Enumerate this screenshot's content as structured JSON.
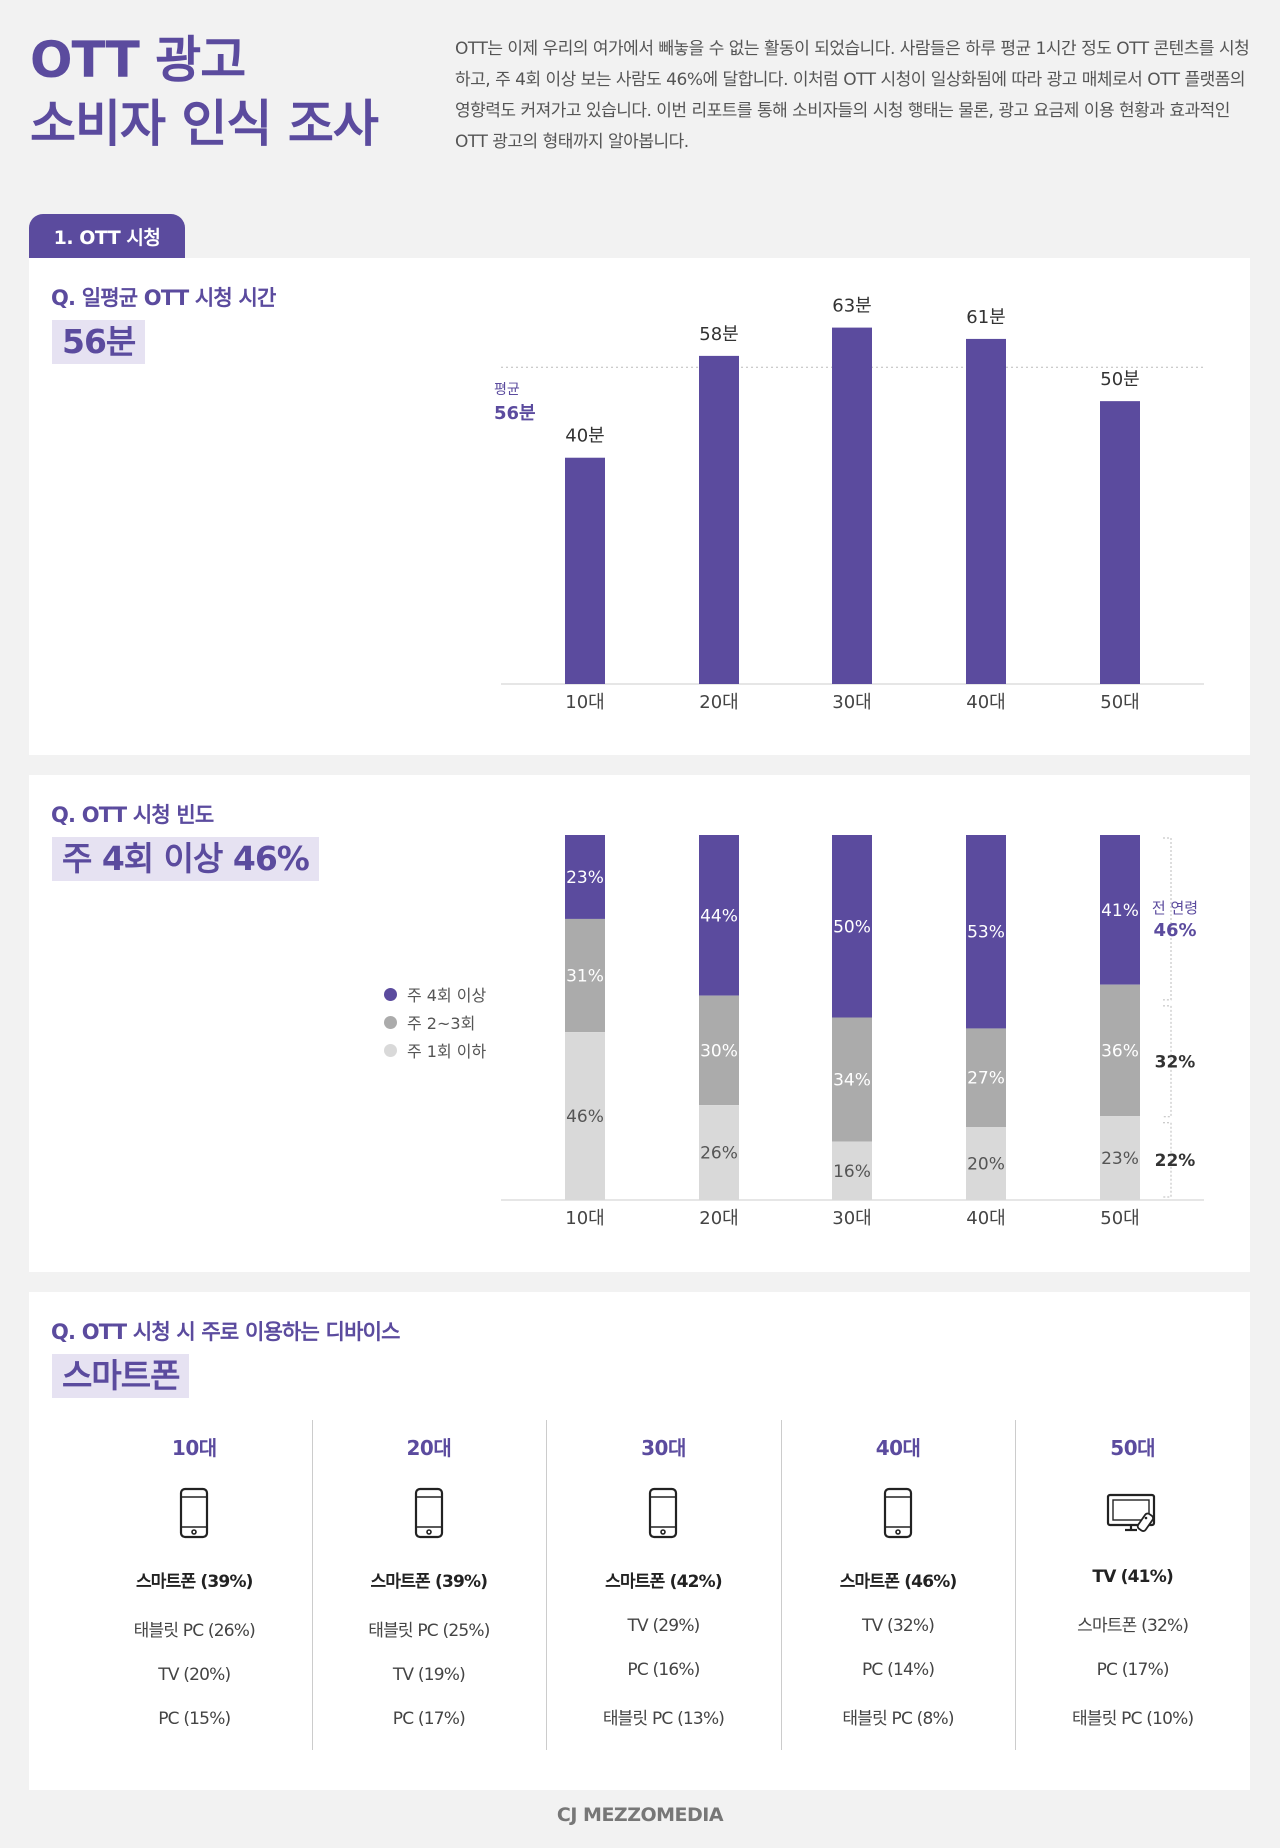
{
  "header": {
    "title_line1": "OTT 광고",
    "title_line2": "소비자 인식 조사",
    "intro": "OTT는 이제 우리의 여가에서 빼놓을 수 없는 활동이 되었습니다. 사람들은 하루 평균 1시간 정도 OTT 콘텐츠를 시청하고, 주 4회 이상 보는 사람도 46%에 달합니다. 이처럼 OTT 시청이 일상화됨에 따라 광고 매체로서 OTT 플랫폼의 영향력도 커져가고 있습니다. 이번 리포트를 통해 소비자들의 시청 행태는 물론, 광고 요금제 이용 현황과 효과적인 OTT 광고의 형태까지 알아봅니다."
  },
  "section_tab": "1. OTT 시청",
  "watch_time": {
    "question": "Q. 일평균 OTT 시청 시간",
    "highlight": "56분"
  },
  "frequency": {
    "question": "Q. OTT 시청 빈도",
    "highlight": "주 4회 이상 46%",
    "legend": [
      "주 4회 이상",
      "주 2~3회",
      "주 1회 이하"
    ]
  },
  "devices": {
    "question": "Q. OTT 시청 시 주로 이용하는 디바이스",
    "highlight": "스마트폰",
    "columns": [
      {
        "age": "10대",
        "icon": "smartphone-icon",
        "top": "스마트폰 (39%)",
        "rest": [
          "태블릿 PC (26%)",
          "TV (20%)",
          "PC (15%)"
        ]
      },
      {
        "age": "20대",
        "icon": "smartphone-icon",
        "top": "스마트폰 (39%)",
        "rest": [
          "태블릿 PC (25%)",
          "TV (19%)",
          "PC (17%)"
        ]
      },
      {
        "age": "30대",
        "icon": "smartphone-icon",
        "top": "스마트폰 (42%)",
        "rest": [
          "TV (29%)",
          "PC (16%)",
          "태블릿 PC (13%)"
        ]
      },
      {
        "age": "40대",
        "icon": "smartphone-icon",
        "top": "스마트폰 (46%)",
        "rest": [
          "TV (32%)",
          "PC (14%)",
          "태블릿 PC (8%)"
        ]
      },
      {
        "age": "50대",
        "icon": "tv-icon",
        "top": "TV (41%)",
        "rest": [
          "스마트폰 (32%)",
          "PC (17%)",
          "태블릿 PC (10%)"
        ]
      }
    ]
  },
  "footer": "CJ MEZZOMEDIA",
  "colors": {
    "primary": "#5b4b9e",
    "mid_gray": "#ababab",
    "light_gray": "#d9d9d9",
    "highlight_bg": "#e6e2f2"
  },
  "chart_data": [
    {
      "type": "bar",
      "categories": [
        "10대",
        "20대",
        "30대",
        "40대",
        "50대"
      ],
      "values": [
        40,
        58,
        63,
        61,
        50
      ],
      "value_labels": [
        "40분",
        "58분",
        "63분",
        "61분",
        "50분"
      ],
      "reference_line": {
        "label": "평균",
        "value": 56,
        "value_label": "56분"
      },
      "ylim": [
        0,
        70
      ]
    },
    {
      "type": "bar",
      "stacked": true,
      "categories": [
        "10대",
        "20대",
        "30대",
        "40대",
        "50대"
      ],
      "series": [
        {
          "name": "주 4회 이상",
          "values": [
            23,
            44,
            50,
            53,
            41
          ],
          "labels": [
            "23%",
            "44%",
            "50%",
            "53%",
            "41%"
          ]
        },
        {
          "name": "주 2~3회",
          "values": [
            31,
            30,
            34,
            27,
            36
          ],
          "labels": [
            "31%",
            "30%",
            "34%",
            "27%",
            "36%"
          ]
        },
        {
          "name": "주 1회 이하",
          "values": [
            46,
            26,
            16,
            20,
            23
          ],
          "labels": [
            "46%",
            "26%",
            "16%",
            "20%",
            "23%"
          ]
        }
      ],
      "overall": {
        "label": "전 연령",
        "values": [
          "46%",
          "32%",
          "22%"
        ]
      },
      "ylim": [
        0,
        100
      ]
    }
  ]
}
